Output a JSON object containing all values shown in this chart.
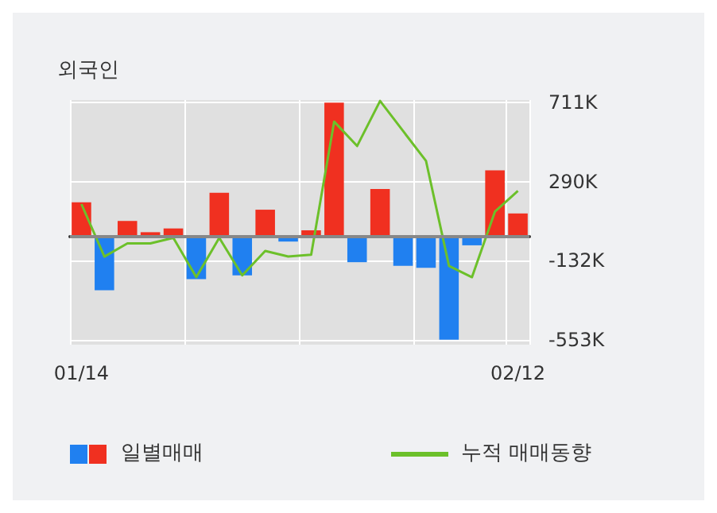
{
  "chart_data": {
    "type": "bar",
    "title": "외국인",
    "categories": [
      "01/14",
      null,
      null,
      null,
      null,
      null,
      null,
      null,
      null,
      null,
      null,
      null,
      null,
      null,
      null,
      null,
      null,
      null,
      null,
      "02/12"
    ],
    "series": [
      {
        "name": "일별매매",
        "colors": [
          "#f03020",
          "#2080f0",
          "#f03020",
          "#f03020",
          "#f03020",
          "#2080f0",
          "#f03020",
          "#2080f0",
          "#f03020",
          "#2080f0",
          "#f03020",
          "#f03020",
          "#2080f0",
          "#f03020",
          "#2080f0",
          "#2080f0",
          "#2080f0",
          "#2080f0",
          "#f03020",
          "#f03020"
        ],
        "values": [
          180,
          -290,
          80,
          20,
          40,
          -230,
          230,
          -210,
          140,
          -30,
          30,
          711,
          -140,
          250,
          -160,
          -170,
          -553,
          -50,
          350,
          120
        ]
      },
      {
        "name": "누적 매매동향",
        "type": "line",
        "color": "#6cc02a",
        "values": [
          170,
          -110,
          -40,
          -40,
          -10,
          -220,
          -10,
          -210,
          -80,
          -110,
          -100,
          610,
          480,
          720,
          560,
          400,
          -160,
          -220,
          130,
          240
        ]
      }
    ],
    "ylim": [
      -580,
      725
    ],
    "yticks": [
      {
        "value": 711,
        "label": "711K"
      },
      {
        "value": 290,
        "label": "290K"
      },
      {
        "value": -132,
        "label": "-132K"
      },
      {
        "value": -553,
        "label": "-553K"
      }
    ],
    "grid": true,
    "legend": "bottom",
    "marker": "none"
  }
}
